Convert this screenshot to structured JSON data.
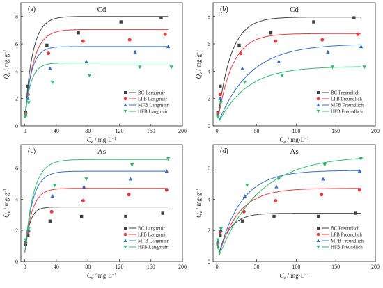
{
  "colors": {
    "BC": "#404040",
    "LFB": "#e8393d",
    "MFB": "#2f6fd1",
    "HFB": "#2cbf6a"
  },
  "chart_data": [
    {
      "panel_label": "(a)",
      "element": "Cd",
      "type": "scatter",
      "model": "Langmuir",
      "xlabel_prefix": "C",
      "xlabel_sub": "e",
      "xlabel_units": " / mg·L",
      "xlabel_sup": "−1",
      "ylabel_prefix": "Q",
      "ylabel_sub": "e",
      "ylabel_units": " / mg·g",
      "ylabel_sup": "−1",
      "xlim": [
        -5,
        200
      ],
      "ylim": [
        0,
        9
      ],
      "xticks": [
        0,
        40,
        80,
        120,
        160,
        200
      ],
      "yticks": [
        0,
        2,
        4,
        6,
        8
      ],
      "legend_position": "bottom-right",
      "series": [
        {
          "name": "BC Langmuir",
          "marker": "square",
          "x": [
            1,
            4,
            28,
            68,
            122,
            173
          ],
          "y": [
            1.0,
            2.9,
            5.9,
            6.8,
            7.6,
            7.9
          ],
          "fit_qm": 7.4,
          "fit_k": 0.1
        },
        {
          "name": "LFB Langmuir",
          "marker": "circle",
          "x": [
            1,
            4,
            30,
            74,
            133,
            178
          ],
          "y": [
            0.9,
            2.3,
            5.3,
            6.2,
            6.3,
            6.7
          ],
          "fit_qm": 6.45,
          "fit_k": 0.09
        },
        {
          "name": "MFB Langmuir",
          "marker": "triangle-up",
          "x": [
            1,
            4,
            32,
            78,
            140,
            182
          ],
          "y": [
            0.8,
            2.0,
            4.2,
            4.7,
            5.4,
            5.8
          ],
          "fit_qm": 5.2,
          "fit_k": 0.12
        },
        {
          "name": "HFB Langmuir",
          "marker": "triangle-down",
          "x": [
            1,
            5,
            35,
            82,
            146,
            186
          ],
          "y": [
            0.7,
            1.7,
            3.2,
            3.7,
            4.3,
            4.3
          ],
          "fit_qm": 4.0,
          "fit_k": 0.13
        }
      ]
    },
    {
      "panel_label": "(b)",
      "element": "Cd",
      "type": "scatter",
      "model": "Freundlich",
      "xlabel_prefix": "C",
      "xlabel_sub": "e",
      "xlabel_units": " / mg·L",
      "xlabel_sup": "−1",
      "ylabel_prefix": "Q",
      "ylabel_sub": "e",
      "ylabel_units": " / mg·g",
      "ylabel_sup": "−1",
      "xlim": [
        -5,
        200
      ],
      "ylim": [
        0,
        9
      ],
      "xticks": [
        0,
        50,
        100,
        150,
        200
      ],
      "yticks": [
        0,
        2,
        4,
        6,
        8
      ],
      "legend_position": "bottom-right",
      "series": [
        {
          "name": "BC Freundlich",
          "marker": "square",
          "x": [
            1,
            4,
            28,
            68,
            122,
            173
          ],
          "y": [
            1.0,
            2.9,
            5.9,
            6.8,
            7.6,
            7.9
          ],
          "fit_qm": 7.95,
          "fit_k": 0.06
        },
        {
          "name": "LFB Freundlich",
          "marker": "circle",
          "x": [
            1,
            4,
            30,
            74,
            133,
            178
          ],
          "y": [
            0.9,
            2.3,
            5.3,
            6.2,
            6.3,
            6.7
          ],
          "fit_qm": 6.75,
          "fit_k": 0.055
        },
        {
          "name": "MFB Freundlich",
          "marker": "triangle-up",
          "x": [
            1,
            4,
            32,
            78,
            140,
            182
          ],
          "y": [
            0.8,
            2.0,
            4.2,
            4.7,
            5.4,
            5.8
          ],
          "fit_qm": 6.0,
          "fit_k": 0.025
        },
        {
          "name": "HFB Freundlich",
          "marker": "triangle-down",
          "x": [
            1,
            5,
            35,
            82,
            146,
            186
          ],
          "y": [
            0.7,
            1.7,
            3.2,
            3.7,
            4.3,
            4.3
          ],
          "fit_qm": 4.35,
          "fit_k": 0.028
        }
      ]
    },
    {
      "panel_label": "(c)",
      "element": "As",
      "type": "scatter",
      "model": "Langmuir",
      "xlabel_prefix": "C",
      "xlabel_sub": "e",
      "xlabel_units": " / mg·L",
      "xlabel_sup": "−1",
      "ylabel_prefix": "Q",
      "ylabel_sub": "e",
      "ylabel_units": " / mg·g",
      "ylabel_sup": "−1",
      "xlim": [
        -5,
        200
      ],
      "ylim": [
        0,
        7.5
      ],
      "xticks": [
        0,
        40,
        80,
        120,
        160,
        200
      ],
      "yticks": [
        0,
        2,
        4,
        6
      ],
      "legend_position": "bottom-right",
      "series": [
        {
          "name": "BC Langmuir",
          "marker": "square",
          "x": [
            1,
            4,
            32,
            72,
            128,
            175
          ],
          "y": [
            1.1,
            1.7,
            2.6,
            2.9,
            2.9,
            3.1
          ],
          "fit_qm": 2.9,
          "fit_k": 0.16
        },
        {
          "name": "LFB Langmuir",
          "marker": "circle",
          "x": [
            1,
            4,
            34,
            74,
            132,
            180
          ],
          "y": [
            1.2,
            1.9,
            3.2,
            3.9,
            4.3,
            4.6
          ],
          "fit_qm": 4.1,
          "fit_k": 0.11
        },
        {
          "name": "MFB Langmuir",
          "marker": "triangle-up",
          "x": [
            1,
            5,
            35,
            75,
            134,
            180
          ],
          "y": [
            1.3,
            2.0,
            4.2,
            4.8,
            5.3,
            5.8
          ],
          "fit_qm": 5.2,
          "fit_k": 0.1
        },
        {
          "name": "HFB Langmuir",
          "marker": "triangle-down",
          "x": [
            1,
            5,
            38,
            78,
            136,
            182
          ],
          "y": [
            1.4,
            2.1,
            4.9,
            5.3,
            6.2,
            6.6
          ],
          "fit_qm": 5.95,
          "fit_k": 0.09
        }
      ]
    },
    {
      "panel_label": "(d)",
      "element": "As",
      "type": "scatter",
      "model": "Freundlich",
      "xlabel_prefix": "C",
      "xlabel_sub": "e",
      "xlabel_units": " / mg·L",
      "xlabel_sup": "−1",
      "ylabel_prefix": "Q",
      "ylabel_sub": "e",
      "ylabel_units": " / mg·g",
      "ylabel_sup": "−1",
      "xlim": [
        -5,
        200
      ],
      "ylim": [
        0,
        7.5
      ],
      "xticks": [
        0,
        50,
        100,
        150,
        200
      ],
      "yticks": [
        0,
        2,
        4,
        6
      ],
      "legend_position": "bottom-right",
      "series": [
        {
          "name": "BC Freundlich",
          "marker": "square",
          "x": [
            1,
            4,
            32,
            72,
            128,
            175
          ],
          "y": [
            1.1,
            1.7,
            2.6,
            2.9,
            2.9,
            3.1
          ],
          "fit_qm": 3.1,
          "fit_k": 0.07
        },
        {
          "name": "LFB Freundlich",
          "marker": "circle",
          "x": [
            1,
            4,
            34,
            74,
            132,
            180
          ],
          "y": [
            1.2,
            1.9,
            3.2,
            3.9,
            4.3,
            4.6
          ],
          "fit_qm": 4.7,
          "fit_k": 0.04
        },
        {
          "name": "MFB Freundlich",
          "marker": "triangle-up",
          "x": [
            1,
            5,
            35,
            75,
            134,
            180
          ],
          "y": [
            1.3,
            2.0,
            4.2,
            4.8,
            5.3,
            5.8
          ],
          "fit_qm": 5.85,
          "fit_k": 0.035
        },
        {
          "name": "HFB Freundlich",
          "marker": "triangle-down",
          "x": [
            1,
            5,
            38,
            78,
            136,
            182
          ],
          "y": [
            1.4,
            2.1,
            4.9,
            5.3,
            6.2,
            6.6
          ],
          "fit_qm": 6.8,
          "fit_k": 0.02
        }
      ]
    }
  ]
}
